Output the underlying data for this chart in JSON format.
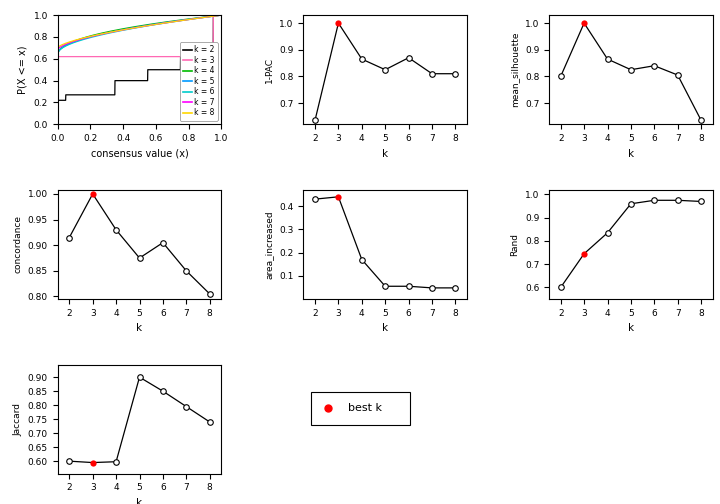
{
  "k_values": [
    2,
    3,
    4,
    5,
    6,
    7,
    8
  ],
  "one_pac": [
    0.635,
    1.0,
    0.865,
    0.825,
    0.87,
    0.81,
    0.81
  ],
  "one_pac_best": 3,
  "mean_silhouette": [
    0.8,
    1.0,
    0.865,
    0.825,
    0.84,
    0.805,
    0.635
  ],
  "mean_silhouette_best": 3,
  "concordance": [
    0.915,
    1.0,
    0.93,
    0.875,
    0.905,
    0.85,
    0.805
  ],
  "concordance_best": 3,
  "area_increased": [
    0.43,
    0.44,
    0.17,
    0.055,
    0.055,
    0.048,
    0.048
  ],
  "area_increased_best": 3,
  "rand": [
    0.6,
    0.745,
    0.835,
    0.96,
    0.975,
    0.975,
    0.97
  ],
  "rand_best": 3,
  "jaccard": [
    0.6,
    0.595,
    0.598,
    0.9,
    0.85,
    0.795,
    0.74
  ],
  "jaccard_best": 3,
  "legend_colors": [
    "black",
    "#FF69B4",
    "#00BB00",
    "#0099FF",
    "#00CCCC",
    "#FF00FF",
    "#FFD700"
  ],
  "legend_labels": [
    "k = 2",
    "k = 3",
    "k = 4",
    "k = 5",
    "k = 6",
    "k = 7",
    "k = 8"
  ],
  "ecdf_colors": [
    "black",
    "#FF69B4",
    "#00BB00",
    "#0099FF",
    "#00CCCC",
    "#FF00FF",
    "#FFD700"
  ],
  "background_color": "#FFFFFF",
  "best_k_color": "red",
  "line_color": "black"
}
